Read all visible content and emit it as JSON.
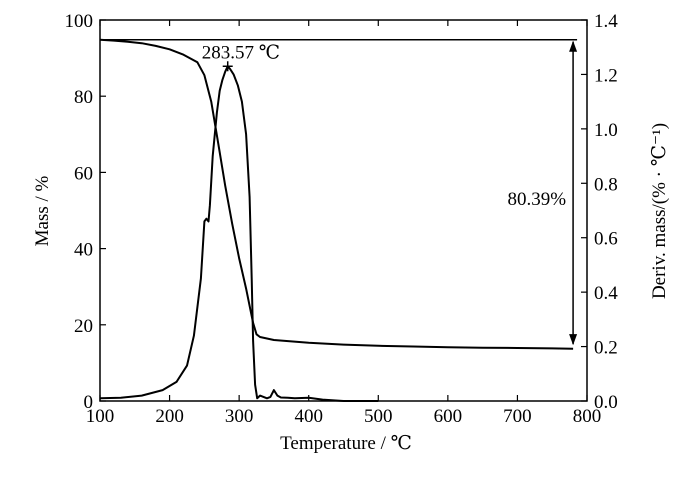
{
  "chart_data": {
    "type": "line",
    "xlabel": "Temperature / ℃",
    "ylabel_left": "Mass / %",
    "ylabel_right": "Deriv. mass/(% · ℃⁻¹)",
    "xlim": [
      100,
      800
    ],
    "ylim_left": [
      0,
      100
    ],
    "ylim_right": [
      0,
      1.4
    ],
    "x_ticks": [
      100,
      200,
      300,
      400,
      500,
      600,
      700,
      800
    ],
    "y_ticks_left": [
      0,
      20,
      40,
      60,
      80,
      100
    ],
    "y_ticks_right": [
      "0.0",
      "0.2",
      "0.4",
      "0.6",
      "0.8",
      "1.0",
      "1.2",
      "1.4"
    ],
    "grid": false,
    "series": [
      {
        "axis": "left",
        "x": [
          100,
          120,
          140,
          160,
          180,
          200,
          220,
          240,
          250,
          260,
          270,
          280,
          290,
          300,
          310,
          315,
          320,
          325,
          330,
          350,
          400,
          450,
          500,
          550,
          600,
          650,
          700,
          750,
          780
        ],
        "values": [
          94.8,
          94.6,
          94.3,
          93.9,
          93.2,
          92.3,
          90.9,
          88.9,
          85.5,
          78.5,
          67.5,
          56.5,
          46.5,
          37.5,
          29.5,
          25.0,
          20.5,
          17.5,
          16.8,
          16.0,
          15.3,
          14.8,
          14.5,
          14.3,
          14.1,
          14.0,
          13.9,
          13.8,
          13.7
        ]
      },
      {
        "axis": "right",
        "x": [
          100,
          130,
          160,
          190,
          210,
          225,
          235,
          245,
          250,
          253,
          256,
          258,
          262,
          268,
          272,
          276,
          280,
          283.57,
          287,
          292,
          298,
          304,
          310,
          315,
          318,
          320,
          323,
          326,
          330,
          335,
          340,
          345,
          350,
          355,
          360,
          370,
          380,
          400,
          420,
          450,
          480,
          500
        ],
        "values": [
          0.01,
          0.012,
          0.02,
          0.04,
          0.07,
          0.13,
          0.24,
          0.45,
          0.66,
          0.67,
          0.66,
          0.72,
          0.9,
          1.06,
          1.14,
          1.18,
          1.21,
          1.23,
          1.22,
          1.2,
          1.16,
          1.1,
          0.98,
          0.75,
          0.45,
          0.22,
          0.06,
          0.01,
          0.02,
          0.015,
          0.01,
          0.015,
          0.04,
          0.02,
          0.013,
          0.012,
          0.01,
          0.012,
          0.005,
          0.0,
          0.0,
          0.0
        ]
      }
    ],
    "annotations": [
      {
        "text": "283.57 ℃",
        "x": 283.57,
        "axis": "right",
        "y": 1.23
      },
      {
        "text": "80.39%",
        "mass_top": 94.8,
        "mass_bottom": 14.4,
        "x": 780
      }
    ]
  }
}
